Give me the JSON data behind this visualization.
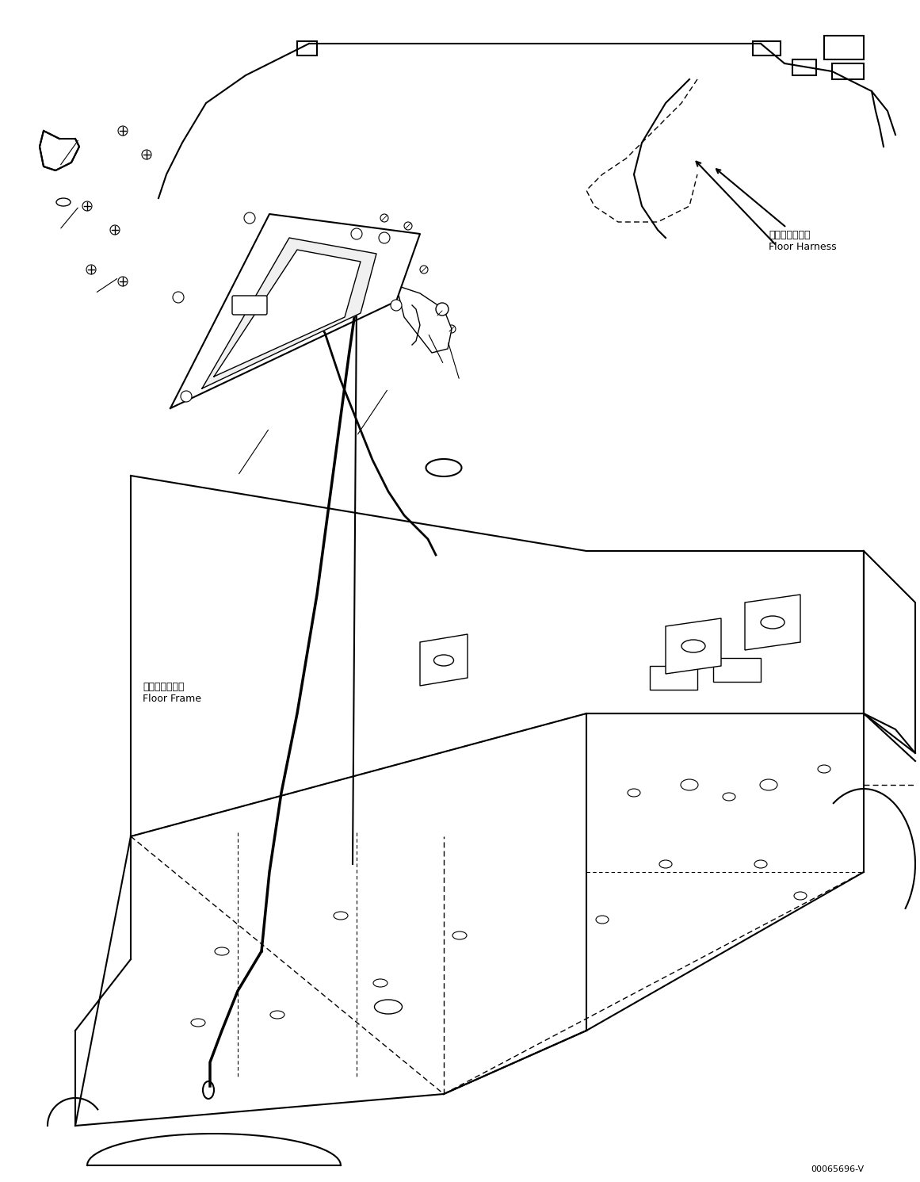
{
  "background_color": "#ffffff",
  "line_color": "#000000",
  "fig_width": 11.61,
  "fig_height": 14.91,
  "dpi": 100,
  "label_floor_harness_jp": "フロアハーネス",
  "label_floor_harness_en": "Floor Harness",
  "label_floor_frame_jp": "フロアフレーム",
  "label_floor_frame_en": "Floor Frame",
  "part_number": "00065696-V"
}
